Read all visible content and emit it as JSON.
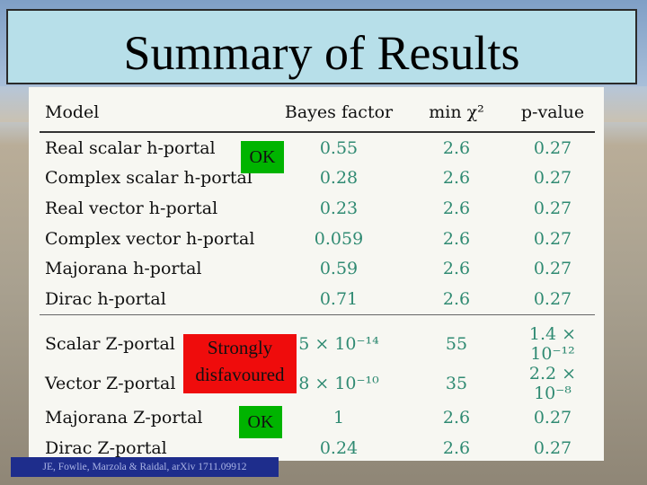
{
  "slide": {
    "title": "Summary of Results",
    "citation": "JE, Fowlie, Marzola & Raidal, arXiv 1711.09912"
  },
  "table": {
    "headers": [
      "Model",
      "Bayes factor",
      "min χ²",
      "p-value"
    ],
    "higgs_portal_rows": [
      {
        "model": "Real scalar h-portal",
        "bayes": "0.55",
        "chi2": "2.6",
        "p": "0.27"
      },
      {
        "model": "Complex scalar h-portal",
        "bayes": "0.28",
        "chi2": "2.6",
        "p": "0.27"
      },
      {
        "model": "Real vector h-portal",
        "bayes": "0.23",
        "chi2": "2.6",
        "p": "0.27"
      },
      {
        "model": "Complex vector h-portal",
        "bayes": "0.059",
        "chi2": "2.6",
        "p": "0.27"
      },
      {
        "model": "Majorana h-portal",
        "bayes": "0.59",
        "chi2": "2.6",
        "p": "0.27"
      },
      {
        "model": "Dirac h-portal",
        "bayes": "0.71",
        "chi2": "2.6",
        "p": "0.27"
      }
    ],
    "z_portal_rows": [
      {
        "model": "Scalar Z-portal",
        "bayes": "5 × 10⁻¹⁴",
        "chi2": "55",
        "p": "1.4 × 10⁻¹²"
      },
      {
        "model": "Vector Z-portal",
        "bayes": "8 × 10⁻¹⁰",
        "chi2": "35",
        "p": "2.2 × 10⁻⁸"
      },
      {
        "model": "Majorana Z-portal",
        "bayes": "1",
        "chi2": "2.6",
        "p": "0.27"
      },
      {
        "model": "Dirac Z-portal",
        "bayes": "0.24",
        "chi2": "2.6",
        "p": "0.27"
      }
    ]
  },
  "annotations": {
    "ok_higgs": "OK",
    "strongly": "Strongly",
    "disfavoured": "disfavoured",
    "ok_z": "OK"
  }
}
